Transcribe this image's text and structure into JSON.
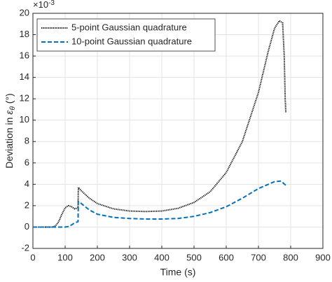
{
  "chart_data": {
    "type": "line",
    "xlabel": "Time (s)",
    "ylabel": {
      "text": "Deviation in",
      "symbol": "ε",
      "subscript": "θ",
      "unit": "(°)"
    },
    "y_multiplier": "×10",
    "y_exponent": "-3",
    "xlim": [
      0,
      900
    ],
    "xticks": [
      0,
      100,
      200,
      300,
      400,
      500,
      600,
      700,
      800,
      900
    ],
    "ylim": [
      -2,
      20
    ],
    "yticks": [
      -2,
      0,
      2,
      4,
      6,
      8,
      10,
      12,
      14,
      16,
      18,
      20
    ],
    "grid": true,
    "legend_position": "upper-left",
    "series": [
      {
        "name": "5-point Gaussian quadrature",
        "color": "#000000",
        "style": "dotted",
        "x": [
          0,
          60,
          70,
          80,
          90,
          100,
          110,
          120,
          130,
          140,
          141,
          150,
          175,
          200,
          250,
          300,
          350,
          400,
          450,
          500,
          550,
          600,
          650,
          700,
          730,
          750,
          765,
          775,
          780,
          783,
          785
        ],
        "values": [
          0,
          0,
          0.1,
          0.5,
          1.2,
          1.8,
          2.0,
          1.9,
          1.7,
          1.8,
          3.7,
          3.4,
          2.7,
          2.2,
          1.7,
          1.5,
          1.45,
          1.5,
          1.75,
          2.3,
          3.3,
          5.1,
          8.0,
          12.6,
          16.4,
          18.6,
          19.3,
          19.1,
          16.0,
          12.0,
          10.7
        ]
      },
      {
        "name": "10-point Gaussian quadrature",
        "color": "#0072bd",
        "style": "dashed",
        "x": [
          0,
          100,
          110,
          120,
          130,
          140,
          141,
          150,
          175,
          200,
          250,
          300,
          350,
          400,
          450,
          500,
          550,
          600,
          650,
          700,
          750,
          770,
          785
        ],
        "values": [
          0,
          0,
          0.05,
          0.2,
          0.4,
          0.5,
          2.4,
          2.2,
          1.6,
          1.2,
          0.9,
          0.8,
          0.75,
          0.75,
          0.8,
          1.0,
          1.35,
          1.9,
          2.7,
          3.6,
          4.25,
          4.3,
          3.9
        ]
      }
    ]
  }
}
